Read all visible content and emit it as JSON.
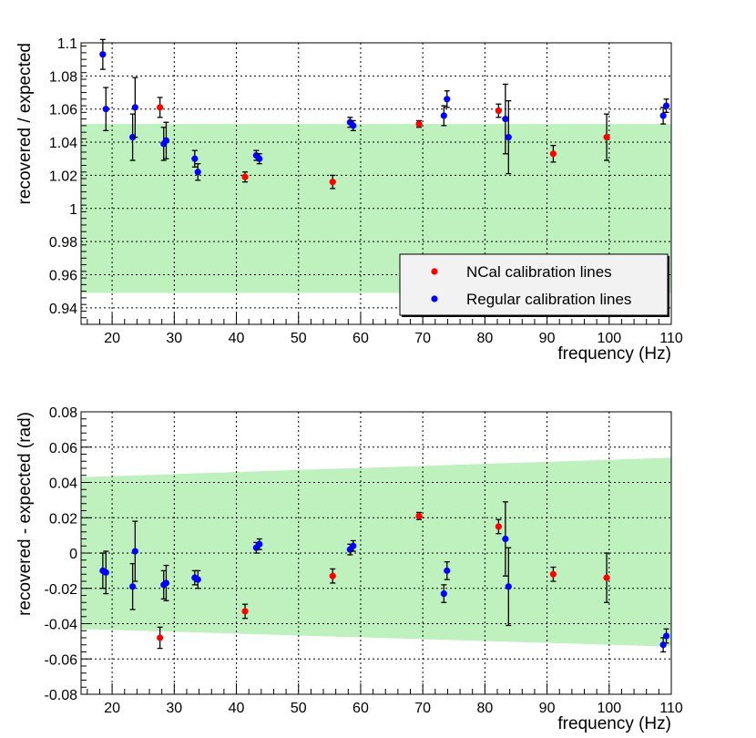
{
  "chart_data": [
    {
      "type": "scatter",
      "xlabel": "frequency (Hz)",
      "ylabel": "recovered / expected",
      "xlim": [
        15,
        110
      ],
      "ylim": [
        0.93,
        1.1
      ],
      "x_ticks": [
        20,
        30,
        40,
        50,
        60,
        70,
        80,
        90,
        100,
        110
      ],
      "y_ticks": [
        0.94,
        0.96,
        0.98,
        1,
        1.02,
        1.04,
        1.06,
        1.08,
        1.1
      ],
      "y_tick_labels": [
        "0.94",
        "0.96",
        "0.98",
        "1",
        "1.02",
        "1.04",
        "1.06",
        "1.08",
        "1.1"
      ],
      "grid": true,
      "uncertainty_band": {
        "x": [
          15,
          110
        ],
        "lower": [
          0.949,
          0.949
        ],
        "upper": [
          1.051,
          1.051
        ],
        "color": "#a8eca8"
      },
      "legend": {
        "position": "lower-right",
        "entries": [
          {
            "label": "NCal calibration lines",
            "color": "#ff0000"
          },
          {
            "label": "Regular calibration lines",
            "color": "#0000ff"
          }
        ]
      },
      "series": [
        {
          "name": "NCal calibration lines",
          "color": "#ff0000",
          "points": [
            {
              "x": 27.7,
              "y": 1.061,
              "err": 0.006
            },
            {
              "x": 41.4,
              "y": 1.019,
              "err": 0.003
            },
            {
              "x": 55.5,
              "y": 1.016,
              "err": 0.004
            },
            {
              "x": 69.4,
              "y": 1.051,
              "err": 0.002
            },
            {
              "x": 82.2,
              "y": 1.059,
              "err": 0.004
            },
            {
              "x": 91.0,
              "y": 1.033,
              "err": 0.005
            },
            {
              "x": 99.6,
              "y": 1.043,
              "err": 0.014
            }
          ]
        },
        {
          "name": "Regular calibration lines",
          "color": "#0000ff",
          "points": [
            {
              "x": 18.5,
              "y": 1.093,
              "err": 0.009
            },
            {
              "x": 19.0,
              "y": 1.06,
              "err": 0.013
            },
            {
              "x": 23.3,
              "y": 1.043,
              "err": 0.014
            },
            {
              "x": 23.7,
              "y": 1.061,
              "err": 0.018
            },
            {
              "x": 28.3,
              "y": 1.039,
              "err": 0.01
            },
            {
              "x": 28.7,
              "y": 1.041,
              "err": 0.011
            },
            {
              "x": 33.3,
              "y": 1.03,
              "err": 0.005
            },
            {
              "x": 33.8,
              "y": 1.022,
              "err": 0.005
            },
            {
              "x": 43.2,
              "y": 1.032,
              "err": 0.003
            },
            {
              "x": 43.7,
              "y": 1.03,
              "err": 0.003
            },
            {
              "x": 58.3,
              "y": 1.052,
              "err": 0.003
            },
            {
              "x": 58.8,
              "y": 1.05,
              "err": 0.003
            },
            {
              "x": 73.4,
              "y": 1.056,
              "err": 0.006
            },
            {
              "x": 73.9,
              "y": 1.066,
              "err": 0.005
            },
            {
              "x": 83.3,
              "y": 1.054,
              "err": 0.021
            },
            {
              "x": 83.8,
              "y": 1.043,
              "err": 0.022
            },
            {
              "x": 108.7,
              "y": 1.056,
              "err": 0.005
            },
            {
              "x": 109.2,
              "y": 1.062,
              "err": 0.004
            }
          ]
        }
      ]
    },
    {
      "type": "scatter",
      "xlabel": "frequency (Hz)",
      "ylabel": "recovered - expected (rad)",
      "xlim": [
        15,
        110
      ],
      "ylim": [
        -0.08,
        0.08
      ],
      "x_ticks": [
        20,
        30,
        40,
        50,
        60,
        70,
        80,
        90,
        100,
        110
      ],
      "y_ticks": [
        -0.08,
        -0.06,
        -0.04,
        -0.02,
        0,
        0.02,
        0.04,
        0.06,
        0.08
      ],
      "y_tick_labels": [
        "-0.08",
        "-0.06",
        "-0.04",
        "-0.02",
        "0",
        "0.02",
        "0.04",
        "0.06",
        "0.08"
      ],
      "grid": true,
      "uncertainty_band": {
        "x": [
          15,
          110
        ],
        "lower": [
          -0.043,
          -0.053
        ],
        "upper": [
          0.043,
          0.054
        ],
        "color": "#a8eca8"
      },
      "series": [
        {
          "name": "NCal calibration lines",
          "color": "#ff0000",
          "points": [
            {
              "x": 27.7,
              "y": -0.048,
              "err": 0.006
            },
            {
              "x": 41.4,
              "y": -0.033,
              "err": 0.004
            },
            {
              "x": 55.5,
              "y": -0.013,
              "err": 0.004
            },
            {
              "x": 69.4,
              "y": 0.021,
              "err": 0.002
            },
            {
              "x": 82.2,
              "y": 0.015,
              "err": 0.004
            },
            {
              "x": 91.0,
              "y": -0.012,
              "err": 0.004
            },
            {
              "x": 99.6,
              "y": -0.014,
              "err": 0.014
            }
          ]
        },
        {
          "name": "Regular calibration lines",
          "color": "#0000ff",
          "points": [
            {
              "x": 18.5,
              "y": -0.01,
              "err": 0.01
            },
            {
              "x": 19.0,
              "y": -0.011,
              "err": 0.012
            },
            {
              "x": 23.3,
              "y": -0.019,
              "err": 0.013
            },
            {
              "x": 23.7,
              "y": 0.001,
              "err": 0.017
            },
            {
              "x": 28.3,
              "y": -0.018,
              "err": 0.008
            },
            {
              "x": 28.7,
              "y": -0.017,
              "err": 0.01
            },
            {
              "x": 33.3,
              "y": -0.014,
              "err": 0.004
            },
            {
              "x": 33.8,
              "y": -0.015,
              "err": 0.005
            },
            {
              "x": 43.2,
              "y": 0.003,
              "err": 0.003
            },
            {
              "x": 43.7,
              "y": 0.005,
              "err": 0.003
            },
            {
              "x": 58.3,
              "y": 0.002,
              "err": 0.003
            },
            {
              "x": 58.8,
              "y": 0.004,
              "err": 0.003
            },
            {
              "x": 73.4,
              "y": -0.023,
              "err": 0.005
            },
            {
              "x": 73.9,
              "y": -0.01,
              "err": 0.005
            },
            {
              "x": 83.3,
              "y": 0.008,
              "err": 0.021
            },
            {
              "x": 83.8,
              "y": -0.019,
              "err": 0.022
            },
            {
              "x": 108.7,
              "y": -0.052,
              "err": 0.004
            },
            {
              "x": 109.2,
              "y": -0.047,
              "err": 0.004
            }
          ]
        }
      ]
    }
  ]
}
